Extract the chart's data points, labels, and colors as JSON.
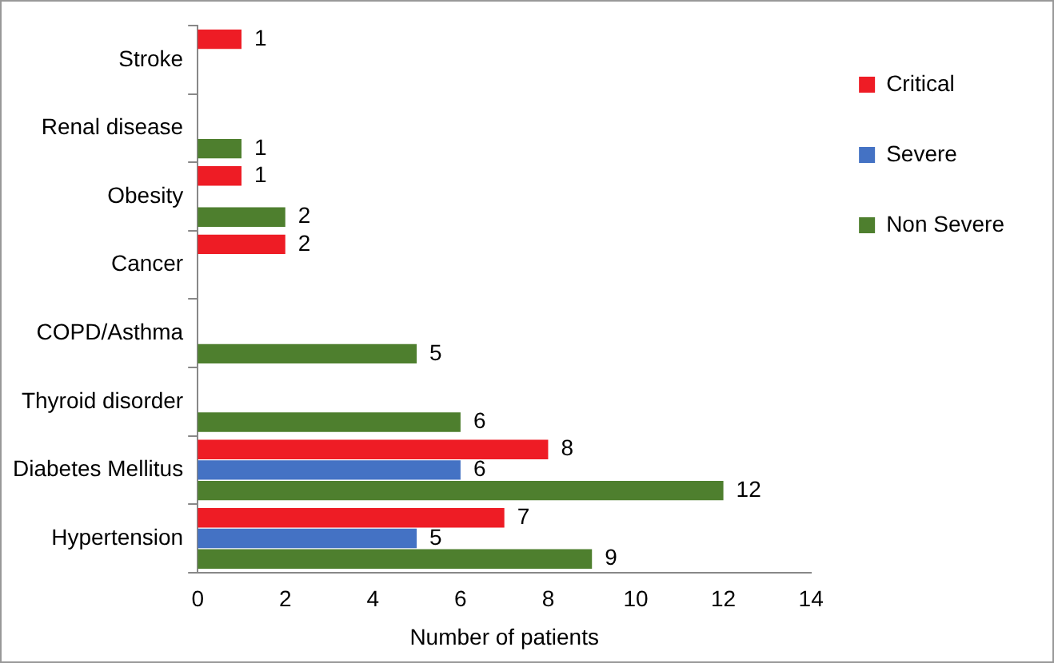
{
  "chart_data": {
    "type": "bar",
    "orientation": "horizontal",
    "xlabel": "Number of patients",
    "categories": [
      "Stroke",
      "Renal disease",
      "Obesity",
      "Cancer",
      "COPD/Asthma",
      "Thyroid disorder",
      "Diabetes Mellitus",
      "Hypertension"
    ],
    "series": [
      {
        "name": "Critical",
        "color": "#ee1c25",
        "values": [
          1,
          null,
          1,
          2,
          null,
          null,
          8,
          7
        ]
      },
      {
        "name": "Severe",
        "color": "#4472c4",
        "values": [
          null,
          null,
          null,
          null,
          null,
          null,
          6,
          5
        ]
      },
      {
        "name": "Non Severe",
        "color": "#4e7f2e",
        "values": [
          null,
          1,
          2,
          null,
          5,
          6,
          12,
          9
        ]
      }
    ],
    "xlim": [
      0,
      14
    ],
    "xticks": [
      0,
      2,
      4,
      6,
      8,
      10,
      12,
      14
    ],
    "grid": false,
    "legend": "right",
    "data_labels": true
  }
}
